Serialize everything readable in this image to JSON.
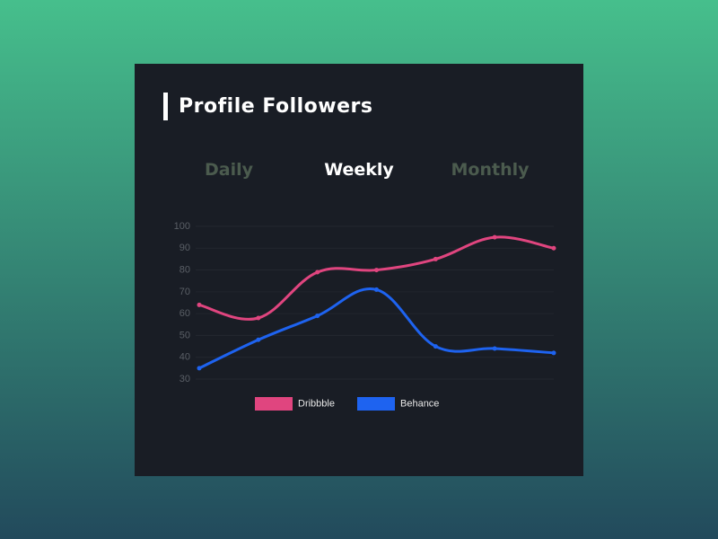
{
  "header": {
    "title": "Profile Followers"
  },
  "tabs": [
    "Daily",
    "Weekly",
    "Monthly"
  ],
  "active_tab": 1,
  "chart_data": {
    "type": "line",
    "categories": [
      null,
      null,
      null,
      null,
      null,
      null,
      null
    ],
    "series": [
      {
        "name": "Dribbble",
        "color": "#e0457f",
        "values": [
          64,
          58,
          79,
          80,
          85,
          95,
          90
        ]
      },
      {
        "name": "Behance",
        "color": "#1e63f0",
        "values": [
          35,
          48,
          59,
          71,
          45,
          44,
          42
        ]
      }
    ],
    "ylim": [
      30,
      100
    ],
    "yticks": [
      30,
      40,
      50,
      60,
      70,
      80,
      90,
      100
    ],
    "grid": true,
    "legend": "bottom"
  }
}
